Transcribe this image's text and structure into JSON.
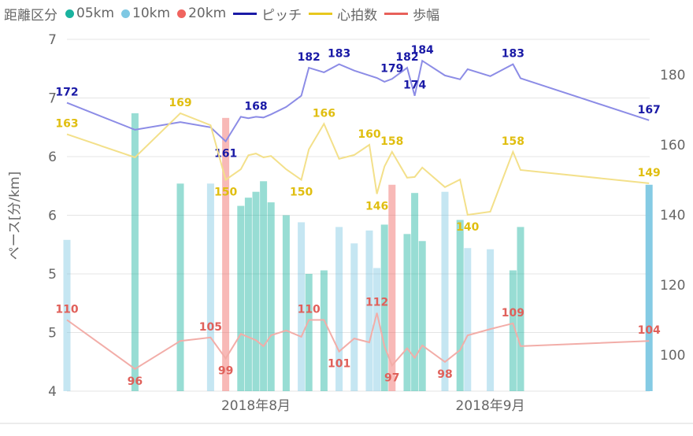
{
  "legend": {
    "title": "距離区分",
    "items": [
      {
        "label": "05km",
        "kind": "dot",
        "color": "#1AB39F"
      },
      {
        "label": "10km",
        "kind": "dot",
        "color": "#7EC8E3"
      },
      {
        "label": "20km",
        "kind": "dot",
        "color": "#F0645F"
      },
      {
        "label": "ピッチ",
        "kind": "line",
        "color": "#1A1AA6"
      },
      {
        "label": "心拍数",
        "kind": "line",
        "color": "#E8C81E"
      },
      {
        "label": "歩幅",
        "kind": "line",
        "color": "#E8605A"
      }
    ]
  },
  "chart_data": {
    "type": "bar+line",
    "ylabel": "ペース[分/km]",
    "ylim_left": [
      4,
      7
    ],
    "ylim_right": [
      90,
      190
    ],
    "left_ticks": [
      {
        "v": 7.0,
        "label": "7"
      },
      {
        "v": 6.5,
        "label": "7"
      },
      {
        "v": 6.0,
        "label": "6"
      },
      {
        "v": 5.5,
        "label": "6"
      },
      {
        "v": 5.0,
        "label": "5"
      },
      {
        "v": 4.5,
        "label": "5"
      },
      {
        "v": 4.0,
        "label": "4"
      }
    ],
    "right_ticks": [
      "180",
      "160",
      "140",
      "120",
      "100"
    ],
    "x_ticks": [
      {
        "date": "2018-08-01",
        "label": "2018年8月"
      },
      {
        "date": "2018-09-01",
        "label": "2018年9月"
      }
    ],
    "grid": true,
    "legend_position": "top-left",
    "dates": [
      "2018-07-07",
      "2018-07-16",
      "2018-07-22",
      "2018-07-26",
      "2018-07-28",
      "2018-07-30",
      "2018-07-31",
      "2018-08-01",
      "2018-08-02",
      "2018-08-03",
      "2018-08-05",
      "2018-08-07",
      "2018-08-08",
      "2018-08-10",
      "2018-08-12",
      "2018-08-14",
      "2018-08-16",
      "2018-08-17",
      "2018-08-18",
      "2018-08-19",
      "2018-08-21",
      "2018-08-22",
      "2018-08-23",
      "2018-08-26",
      "2018-08-28",
      "2018-08-29",
      "2018-09-01",
      "2018-09-04",
      "2018-09-05",
      "2018-09-22"
    ],
    "distance_class": [
      "10km",
      "05km",
      "05km",
      "10km",
      "20km",
      "05km",
      "05km",
      "05km",
      "05km",
      "05km",
      "05km",
      "10km",
      "05km",
      "05km",
      "10km",
      "10km",
      "10km",
      "10km",
      "05km",
      "20km",
      "05km",
      "05km",
      "05km",
      "10km",
      "05km",
      "10km",
      "10km",
      "05km",
      "05km",
      "10km"
    ],
    "pace": [
      5.29,
      6.37,
      5.77,
      5.77,
      6.33,
      5.58,
      5.65,
      5.7,
      5.79,
      5.61,
      5.5,
      5.44,
      5.0,
      5.03,
      5.4,
      5.26,
      5.37,
      5.05,
      5.42,
      5.76,
      5.34,
      5.69,
      5.28,
      5.7,
      5.46,
      5.22,
      5.21,
      5.03,
      5.4,
      5.76
    ],
    "series": [
      {
        "name": "ピッチ",
        "axis": "right",
        "color": "#1A1AA6",
        "line_color": "#8C8CE6",
        "label_color": "#1A1AA6",
        "values": [
          172,
          164.3,
          166.5,
          165,
          161,
          168,
          167.6,
          168,
          167.8,
          168.7,
          170.8,
          174,
          182,
          180.7,
          183,
          181.2,
          179.8,
          179.1,
          178,
          178.8,
          182,
          174,
          184,
          179.8,
          178.7,
          181.6,
          179.6,
          183,
          179,
          167
        ],
        "labeled": [
          0,
          4,
          7,
          12,
          14,
          19,
          20,
          21,
          22,
          27,
          29
        ],
        "below": [
          4
        ]
      },
      {
        "name": "心拍数",
        "axis": "right",
        "color": "#E8C81E",
        "line_color": "#F3E08A",
        "label_color": "#E0BE10",
        "values": [
          163,
          156.4,
          169,
          165.6,
          150,
          153,
          157,
          157.5,
          156.4,
          156.8,
          153,
          150,
          158.7,
          166,
          156,
          157.1,
          160,
          146,
          153.8,
          158,
          150.6,
          150.8,
          153.5,
          147.9,
          150.1,
          140,
          140.9,
          158,
          152.8,
          149
        ],
        "labeled": [
          0,
          2,
          4,
          11,
          13,
          16,
          17,
          19,
          25,
          27,
          29
        ],
        "below": [
          4,
          11,
          17,
          25
        ]
      },
      {
        "name": "歩幅",
        "axis": "right",
        "color": "#E8605A",
        "line_color": "#F2ADA8",
        "label_color": "#E0605A",
        "values": [
          110,
          96,
          104,
          105,
          99,
          106,
          105.1,
          104.2,
          102.5,
          105.6,
          107,
          105.2,
          110,
          110,
          101,
          104.7,
          103.6,
          112,
          102.5,
          97,
          101.9,
          99.2,
          102.7,
          98,
          101.4,
          105.6,
          107.4,
          109,
          102.5,
          104
        ],
        "labeled": [
          0,
          1,
          3,
          4,
          12,
          14,
          17,
          19,
          23,
          27,
          29
        ],
        "below": [
          1,
          4,
          14,
          19,
          23
        ]
      }
    ],
    "bar_colors": {
      "05km": "#1AB39F",
      "10km": "#7EC8E3",
      "20km": "#F0645F"
    }
  }
}
